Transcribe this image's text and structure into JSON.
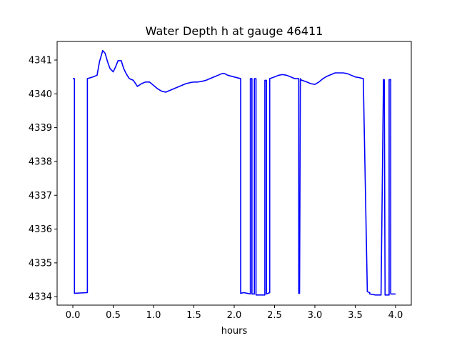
{
  "chart_data": {
    "type": "line",
    "title": "Water Depth h at gauge 46411",
    "xlabel": "hours",
    "ylabel": "",
    "xlim": [
      -0.195,
      4.195
    ],
    "ylim": [
      4333.75,
      4341.55
    ],
    "grid": false,
    "legend": "none",
    "x_ticks": [
      0.0,
      0.5,
      1.0,
      1.5,
      2.0,
      2.5,
      3.0,
      3.5,
      4.0
    ],
    "x_tick_labels": [
      "0.0",
      "0.5",
      "1.0",
      "1.5",
      "2.0",
      "2.5",
      "3.0",
      "3.5",
      "4.0"
    ],
    "y_ticks": [
      4334,
      4335,
      4336,
      4337,
      4338,
      4339,
      4340,
      4341
    ],
    "y_tick_labels": [
      "4334",
      "4335",
      "4336",
      "4337",
      "4338",
      "4339",
      "4340",
      "4341"
    ],
    "series": [
      {
        "color": "#0000ff",
        "x": [
          0.0,
          0.02,
          0.02,
          0.18,
          0.18,
          0.25,
          0.3,
          0.33,
          0.37,
          0.4,
          0.43,
          0.46,
          0.5,
          0.53,
          0.56,
          0.6,
          0.63,
          0.66,
          0.7,
          0.75,
          0.8,
          0.85,
          0.9,
          0.95,
          1.0,
          1.05,
          1.1,
          1.15,
          1.2,
          1.25,
          1.3,
          1.35,
          1.4,
          1.45,
          1.5,
          1.55,
          1.6,
          1.65,
          1.7,
          1.75,
          1.8,
          1.85,
          1.88,
          1.92,
          2.0,
          2.08,
          2.08,
          2.12,
          2.16,
          2.2,
          2.2,
          2.21,
          2.22,
          2.22,
          2.25,
          2.25,
          2.26,
          2.27,
          2.27,
          2.3,
          2.3,
          2.38,
          2.38,
          2.39,
          2.4,
          2.4,
          2.44,
          2.44,
          2.5,
          2.55,
          2.6,
          2.65,
          2.7,
          2.75,
          2.8,
          2.8,
          2.81,
          2.82,
          2.82,
          2.9,
          2.95,
          3.0,
          3.05,
          3.1,
          3.15,
          3.2,
          3.25,
          3.3,
          3.35,
          3.4,
          3.45,
          3.5,
          3.55,
          3.6,
          3.65,
          3.68,
          3.68,
          3.75,
          3.82,
          3.85,
          3.85,
          3.86,
          3.87,
          3.87,
          3.92,
          3.92,
          3.93,
          3.94,
          3.94,
          4.0
        ],
        "y": [
          4340.45,
          4340.45,
          4334.1,
          4334.12,
          4340.45,
          4340.5,
          4340.55,
          4340.95,
          4341.28,
          4341.2,
          4340.95,
          4340.75,
          4340.65,
          4340.8,
          4340.98,
          4340.98,
          4340.75,
          4340.6,
          4340.45,
          4340.4,
          4340.22,
          4340.3,
          4340.35,
          4340.35,
          4340.25,
          4340.15,
          4340.08,
          4340.05,
          4340.1,
          4340.15,
          4340.2,
          4340.25,
          4340.3,
          4340.33,
          4340.35,
          4340.35,
          4340.37,
          4340.4,
          4340.45,
          4340.5,
          4340.55,
          4340.6,
          4340.6,
          4340.55,
          4340.5,
          4340.45,
          4334.1,
          4334.12,
          4334.1,
          4334.08,
          4340.45,
          4340.45,
          4340.45,
          4334.08,
          4334.08,
          4340.45,
          4340.45,
          4340.45,
          4334.05,
          4334.05,
          4334.05,
          4334.05,
          4340.4,
          4340.4,
          4340.4,
          4334.08,
          4334.12,
          4340.45,
          4340.5,
          4340.55,
          4340.57,
          4340.55,
          4340.5,
          4340.45,
          4340.45,
          4334.1,
          4334.1,
          4340.45,
          4340.42,
          4340.35,
          4340.3,
          4340.28,
          4340.35,
          4340.45,
          4340.52,
          4340.57,
          4340.62,
          4340.62,
          4340.62,
          4340.6,
          4340.55,
          4340.5,
          4340.48,
          4340.45,
          4334.15,
          4334.12,
          4334.08,
          4334.05,
          4334.05,
          4340.42,
          4340.42,
          4340.42,
          4334.05,
          4334.05,
          4334.05,
          4340.42,
          4340.42,
          4340.42,
          4334.08,
          4334.08
        ]
      }
    ]
  }
}
